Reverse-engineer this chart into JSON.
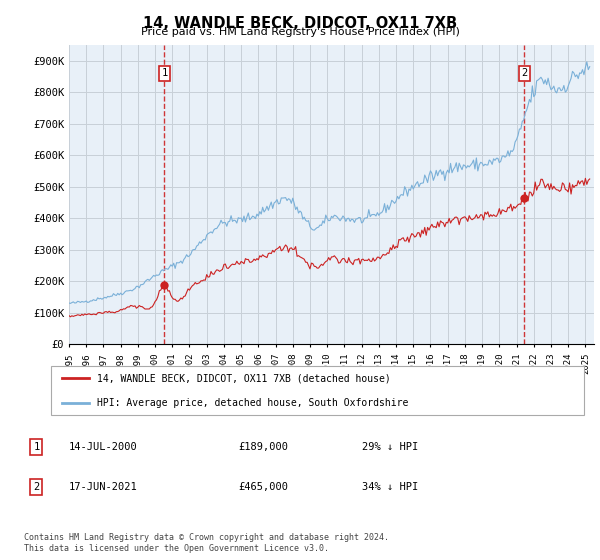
{
  "title": "14, WANDLE BECK, DIDCOT, OX11 7XB",
  "subtitle": "Price paid vs. HM Land Registry's House Price Index (HPI)",
  "ylim": [
    0,
    950000
  ],
  "yticks": [
    0,
    100000,
    200000,
    300000,
    400000,
    500000,
    600000,
    700000,
    800000,
    900000
  ],
  "ytick_labels": [
    "£0",
    "£100K",
    "£200K",
    "£300K",
    "£400K",
    "£500K",
    "£600K",
    "£700K",
    "£800K",
    "£900K"
  ],
  "xlim_start": 1995.0,
  "xlim_end": 2025.5,
  "background_color": "#ffffff",
  "plot_bg_color": "#e8f0f8",
  "grid_color": "#c8d0d8",
  "hpi_color": "#7ab0d8",
  "price_color": "#cc2222",
  "marker1_x": 2000.54,
  "marker1_y": 189000,
  "marker2_x": 2021.46,
  "marker2_y": 465000,
  "legend_label_price": "14, WANDLE BECK, DIDCOT, OX11 7XB (detached house)",
  "legend_label_hpi": "HPI: Average price, detached house, South Oxfordshire",
  "annotation1_label": "1",
  "annotation1_date": "14-JUL-2000",
  "annotation1_price": "£189,000",
  "annotation1_hpi": "29% ↓ HPI",
  "annotation2_label": "2",
  "annotation2_date": "17-JUN-2021",
  "annotation2_price": "£465,000",
  "annotation2_hpi": "34% ↓ HPI",
  "footnote": "Contains HM Land Registry data © Crown copyright and database right 2024.\nThis data is licensed under the Open Government Licence v3.0."
}
